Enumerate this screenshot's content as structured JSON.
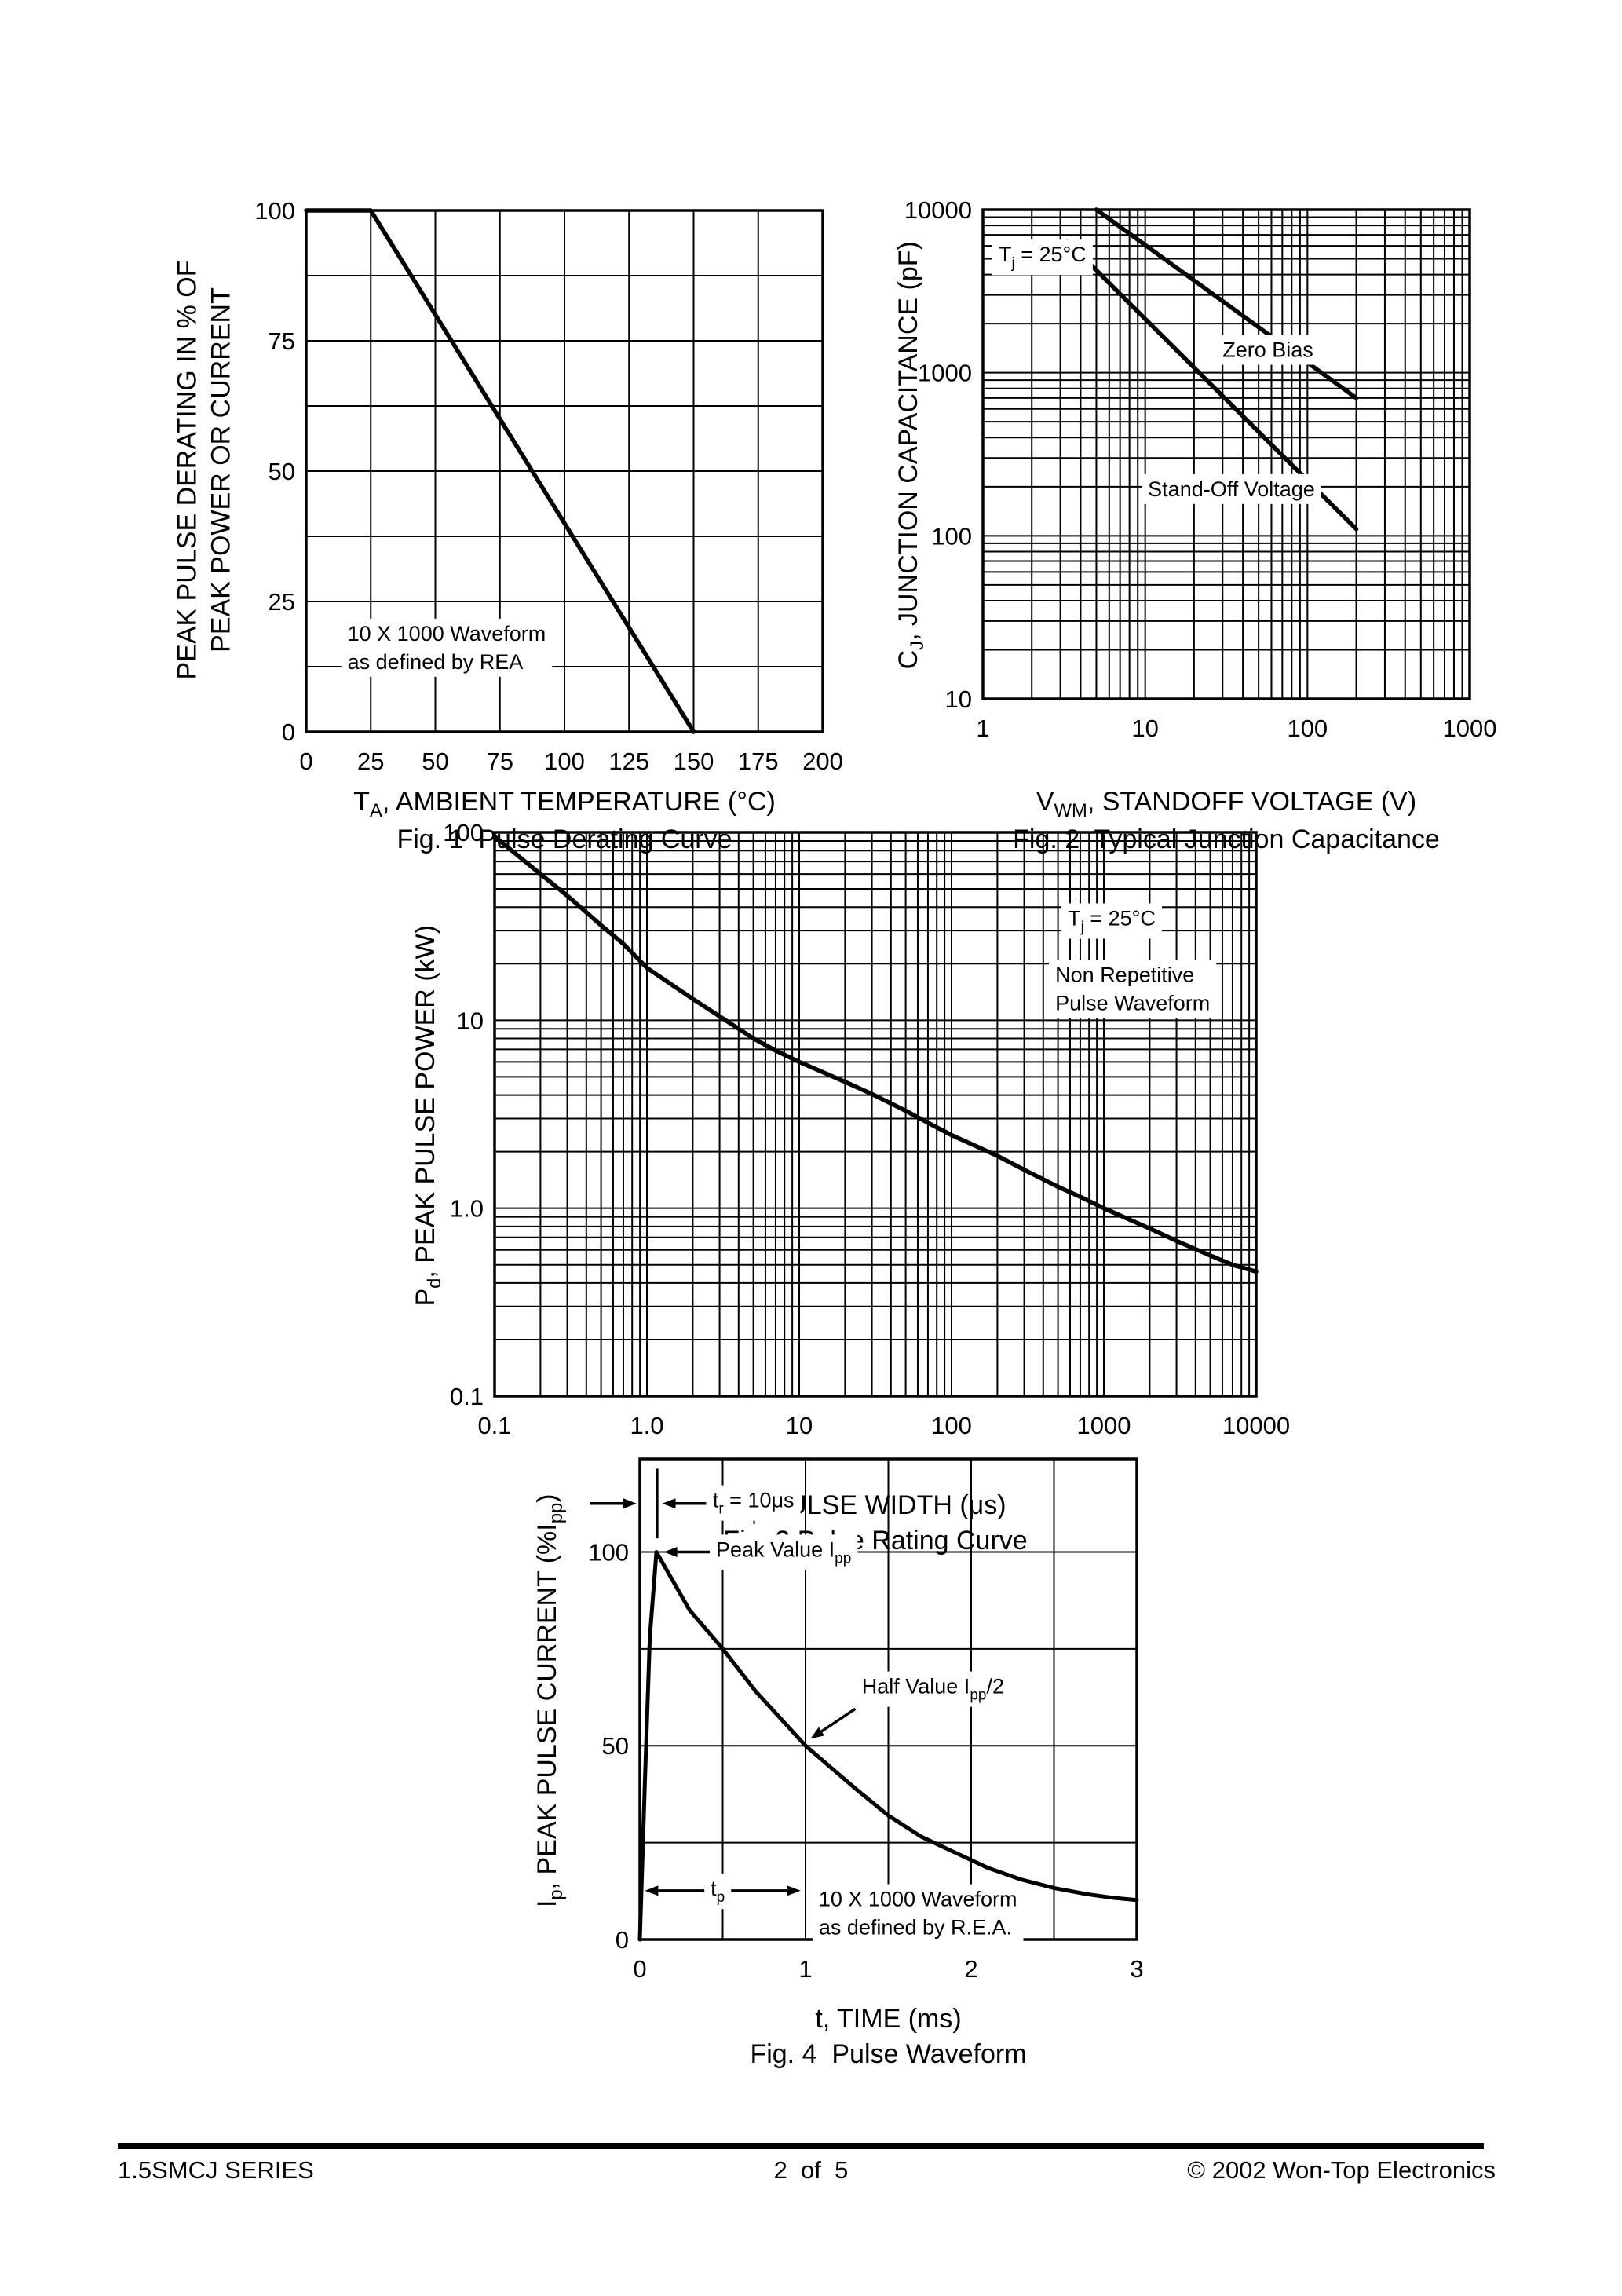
{
  "footer": {
    "series": "1.5SMCJ SERIES",
    "page_number": "2  of  5",
    "copyright": "© 2002 Won-Top Electronics"
  },
  "chart_data": [
    {
      "id": "fig1",
      "type": "line",
      "caption": "Fig. 1  Pulse Derating Curve",
      "xlabel": [
        {
          "t": "T"
        },
        {
          "t": "A",
          "sub": true
        },
        {
          "t": ", AMBIENT TEMPERATURE (°C)"
        }
      ],
      "ylabel": [
        {
          "t": "PEAK PULSE DERATING IN % OF"
        },
        {
          "br": true
        },
        {
          "t": "PEAK POWER OR CURRENT"
        }
      ],
      "x": {
        "scale": "linear",
        "min": 0,
        "max": 200,
        "grid": 25,
        "ticks": [
          {
            "v": 0,
            "l": "0"
          },
          {
            "v": 25,
            "l": "25"
          },
          {
            "v": 50,
            "l": "50"
          },
          {
            "v": 75,
            "l": "75"
          },
          {
            "v": 100,
            "l": "100"
          },
          {
            "v": 125,
            "l": "125"
          },
          {
            "v": 150,
            "l": "150"
          },
          {
            "v": 175,
            "l": "175"
          },
          {
            "v": 200,
            "l": "200"
          }
        ]
      },
      "y": {
        "scale": "linear",
        "min": 0,
        "max": 100,
        "grid": 12.5,
        "ticks": [
          {
            "v": 100,
            "l": "100"
          },
          {
            "v": 75,
            "l": "75"
          },
          {
            "v": 50,
            "l": "50"
          },
          {
            "v": 25,
            "l": "25"
          },
          {
            "v": 0,
            "l": "0"
          }
        ]
      },
      "series": [
        {
          "name": "pulse-derating-curve",
          "w": 5.5,
          "points": [
            [
              0,
              100
            ],
            [
              25,
              100
            ],
            [
              150,
              0
            ]
          ]
        }
      ],
      "annotations": [
        {
          "x": 16,
          "y": 17.5,
          "align": "start",
          "fs": 27,
          "lh": 36,
          "bg": true,
          "rows": [
            [
              {
                "t": "10 X 1000 Waveform"
              }
            ],
            [
              {
                "t": "as defined by REA"
              }
            ]
          ]
        }
      ]
    },
    {
      "id": "fig2",
      "type": "line",
      "caption": "Fig. 2  Typical Junction Capacitance",
      "xlabel": [
        {
          "t": "V"
        },
        {
          "t": "WM",
          "sub": true
        },
        {
          "t": ", STANDOFF VOLTAGE (V)"
        }
      ],
      "ylabel": [
        {
          "t": "C"
        },
        {
          "t": "J",
          "sub": true
        },
        {
          "t": ", JUNCTION CAPACITANCE (pF)"
        }
      ],
      "x": {
        "scale": "log",
        "min": 1,
        "max": 1000,
        "ticks": [
          {
            "v": 1,
            "l": "1"
          },
          {
            "v": 10,
            "l": "10"
          },
          {
            "v": 100,
            "l": "100"
          },
          {
            "v": 1000,
            "l": "1000"
          }
        ]
      },
      "y": {
        "scale": "log",
        "min": 10,
        "max": 10000,
        "ticks": [
          {
            "v": 10000,
            "l": "10000"
          },
          {
            "v": 1000,
            "l": "1000"
          },
          {
            "v": 100,
            "l": "100"
          },
          {
            "v": 10,
            "l": "10"
          }
        ]
      },
      "series": [
        {
          "name": "zero-bias",
          "w": 5.5,
          "points": [
            [
              5,
              10000
            ],
            [
              200,
              700
            ]
          ]
        },
        {
          "name": "stand-off-voltage",
          "w": 5.5,
          "points": [
            [
              3.3,
              6400
            ],
            [
              200,
              110
            ]
          ]
        }
      ],
      "annotations": [
        {
          "x": 1.25,
          "y": 4800,
          "align": "start",
          "fs": 27,
          "bg": true,
          "rows": [
            [
              {
                "t": "T"
              },
              {
                "t": "j",
                "sub": true
              },
              {
                "t": " = 25°C"
              }
            ]
          ]
        },
        {
          "x": 30,
          "y": 1250,
          "align": "start",
          "fs": 27,
          "bg": true,
          "rows": [
            [
              {
                "t": "Zero Bias"
              }
            ]
          ]
        },
        {
          "x": 10.4,
          "y": 175,
          "align": "start",
          "fs": 27,
          "bg": true,
          "rows": [
            [
              {
                "t": "Stand-Off Voltage"
              }
            ]
          ]
        }
      ]
    },
    {
      "id": "fig3",
      "type": "line",
      "caption": "Fig. 3 Pulse Rating Curve",
      "xlabel": [
        {
          "t": "t"
        },
        {
          "t": "p",
          "sub": true
        },
        {
          "t": " PULSE WIDTH (μs)"
        }
      ],
      "ylabel": [
        {
          "t": "P"
        },
        {
          "t": "d",
          "sub": true
        },
        {
          "t": ", PEAK PULSE POWER (kW)"
        }
      ],
      "x": {
        "scale": "log",
        "min": 0.1,
        "max": 10000,
        "ticks": [
          {
            "v": 0.1,
            "l": "0.1"
          },
          {
            "v": 1,
            "l": "1.0"
          },
          {
            "v": 10,
            "l": "10"
          },
          {
            "v": 100,
            "l": "100"
          },
          {
            "v": 1000,
            "l": "1000"
          },
          {
            "v": 10000,
            "l": "10000"
          }
        ]
      },
      "y": {
        "scale": "log",
        "min": 0.1,
        "max": 100,
        "ticks": [
          {
            "v": 100,
            "l": "100"
          },
          {
            "v": 10,
            "l": "10"
          },
          {
            "v": 1,
            "l": "1.0"
          },
          {
            "v": 0.1,
            "l": "0.1"
          }
        ]
      },
      "series": [
        {
          "name": "pulse-rating-curve",
          "w": 5.5,
          "points": [
            [
              0.1,
              95
            ],
            [
              0.2,
              60
            ],
            [
              0.3,
              46
            ],
            [
              0.5,
              32
            ],
            [
              0.7,
              25.5
            ],
            [
              1,
              19
            ],
            [
              2,
              13
            ],
            [
              3,
              10.5
            ],
            [
              5,
              8
            ],
            [
              7,
              6.9
            ],
            [
              10,
              6
            ],
            [
              20,
              4.7
            ],
            [
              30,
              4.05
            ],
            [
              50,
              3.3
            ],
            [
              70,
              2.85
            ],
            [
              100,
              2.45
            ],
            [
              200,
              1.9
            ],
            [
              300,
              1.6
            ],
            [
              500,
              1.3
            ],
            [
              700,
              1.15
            ],
            [
              1000,
              1.0
            ],
            [
              2000,
              0.78
            ],
            [
              3000,
              0.67
            ],
            [
              5000,
              0.56
            ],
            [
              7000,
              0.5
            ],
            [
              10000,
              0.46
            ]
          ]
        }
      ],
      "annotations": [
        {
          "x": 580,
          "y": 32,
          "align": "start",
          "fs": 27,
          "bg": true,
          "rows": [
            [
              {
                "t": "T"
              },
              {
                "t": "j",
                "sub": true
              },
              {
                "t": " = 25°C"
              }
            ]
          ]
        },
        {
          "x": 480,
          "y": 16,
          "align": "start",
          "fs": 27,
          "lh": 36,
          "bg": true,
          "rows": [
            [
              {
                "t": "Non Repetitive"
              }
            ],
            [
              {
                "t": "Pulse Waveform"
              }
            ]
          ]
        }
      ]
    },
    {
      "id": "fig4",
      "type": "line",
      "caption": "Fig. 4  Pulse Waveform",
      "xlabel": [
        {
          "t": "t, TIME (ms)"
        }
      ],
      "ylabel": [
        {
          "t": "I"
        },
        {
          "t": "p",
          "sub": true
        },
        {
          "t": ", PEAK PULSE CURRENT (%I"
        },
        {
          "t": "pp",
          "sub": true
        },
        {
          "t": ")"
        }
      ],
      "x": {
        "scale": "linear",
        "min": 0,
        "max": 3,
        "grid": 0.5,
        "ticks": [
          {
            "v": 0,
            "l": "0"
          },
          {
            "v": 1,
            "l": "1"
          },
          {
            "v": 2,
            "l": "2"
          },
          {
            "v": 3,
            "l": "3"
          }
        ]
      },
      "y": {
        "scale": "linear",
        "min": 0,
        "max": 124,
        "grid": 25,
        "ticks": [
          {
            "v": 100,
            "l": "100"
          },
          {
            "v": 50,
            "l": "50"
          },
          {
            "v": 0,
            "l": "0"
          }
        ]
      },
      "series": [
        {
          "name": "pulse-waveform",
          "w": 5,
          "points": [
            [
              0,
              0
            ],
            [
              0.03,
              40
            ],
            [
              0.06,
              78
            ],
            [
              0.1,
              100
            ],
            [
              0.3,
              85
            ],
            [
              0.5,
              75
            ],
            [
              0.7,
              64
            ],
            [
              0.85,
              57
            ],
            [
              1.0,
              50
            ],
            [
              1.15,
              44.5
            ],
            [
              1.3,
              39
            ],
            [
              1.5,
              32
            ],
            [
              1.7,
              26.5
            ],
            [
              1.9,
              22.5
            ],
            [
              2.1,
              18.5
            ],
            [
              2.3,
              15.5
            ],
            [
              2.5,
              13.3
            ],
            [
              2.7,
              11.7
            ],
            [
              2.85,
              10.8
            ],
            [
              3.0,
              10.2
            ]
          ]
        }
      ],
      "annotations": [
        {
          "x": 0.44,
          "y": 111.5,
          "align": "start",
          "fs": 27,
          "bg": true,
          "rows": [
            [
              {
                "t": "t"
              },
              {
                "t": "r",
                "sub": true
              },
              {
                "t": " = 10μs"
              }
            ]
          ],
          "marks": [
            [
              0.105,
              103.5,
              0.105,
              121.5
            ]
          ],
          "arrows": [
            [
              -0.3,
              112.5,
              -0.02,
              112.5
            ],
            [
              0.4,
              112.5,
              0.135,
              112.5
            ]
          ]
        },
        {
          "x": 0.46,
          "y": 98.8,
          "align": "start",
          "fs": 27,
          "bg": true,
          "rows": [
            [
              {
                "t": "Peak Value I"
              },
              {
                "t": "pp",
                "sub": true
              }
            ]
          ],
          "arrows": [
            [
              0.44,
              100,
              0.145,
              100
            ]
          ]
        },
        {
          "x": 1.34,
          "y": 63.5,
          "align": "start",
          "fs": 27,
          "bg": true,
          "rows": [
            [
              {
                "t": "Half Value I"
              },
              {
                "t": "pp",
                "sub": true
              },
              {
                "t": "/2"
              }
            ]
          ],
          "arrows": [
            [
              1.3,
              59.5,
              1.03,
              51.8
            ]
          ]
        },
        {
          "x": 0.47,
          "y": 11.3,
          "align": "middle",
          "fs": 27,
          "bg": true,
          "rows": [
            [
              {
                "t": "t"
              },
              {
                "t": "p",
                "sub": true
              }
            ]
          ],
          "arrows": [
            [
              0.48,
              12.6,
              0.03,
              12.6
            ],
            [
              0.48,
              12.6,
              0.97,
              12.6
            ]
          ]
        },
        {
          "x": 1.08,
          "y": 8.6,
          "align": "start",
          "fs": 27,
          "lh": 36,
          "bg": true,
          "rows": [
            [
              {
                "t": "10 X 1000 Waveform"
              }
            ],
            [
              {
                "t": "as defined by R.E.A."
              }
            ]
          ],
          "arrows": [
            [
              1.99,
              5.2,
              2.31,
              13.6
            ]
          ]
        }
      ]
    }
  ]
}
